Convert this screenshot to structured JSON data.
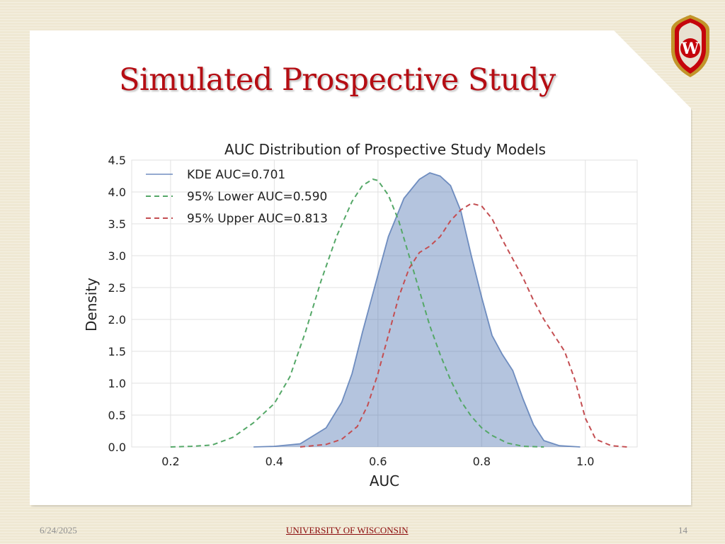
{
  "slide": {
    "title": "Simulated Prospective Study",
    "footer_date": "6/24/2025",
    "footer_org": "UNIVERSITY OF WISCONSIN",
    "page_number": "14",
    "logo_letter": "W",
    "colors": {
      "title": "#b50d13",
      "logo_red": "#c5050c"
    }
  },
  "chart_data": {
    "type": "line",
    "title": "AUC Distribution of Prospective Study Models",
    "xlabel": "AUC",
    "ylabel": "Density",
    "xlim": [
      0.125,
      1.1
    ],
    "ylim": [
      0,
      4.5
    ],
    "xticks": [
      "0.2",
      "0.4",
      "0.6",
      "0.8",
      "1.0"
    ],
    "yticks": [
      "0.0",
      "0.5",
      "1.0",
      "1.5",
      "2.0",
      "2.5",
      "3.0",
      "3.5",
      "4.0",
      "4.5"
    ],
    "grid": true,
    "legend_position": "top-left",
    "series": [
      {
        "name": "KDE AUC=0.701",
        "style": "filled",
        "color": "#4c72b0",
        "x": [
          0.36,
          0.4,
          0.45,
          0.5,
          0.53,
          0.55,
          0.57,
          0.6,
          0.62,
          0.65,
          0.68,
          0.7,
          0.72,
          0.74,
          0.76,
          0.78,
          0.8,
          0.82,
          0.84,
          0.86,
          0.88,
          0.9,
          0.92,
          0.95,
          0.99
        ],
        "y": [
          0.0,
          0.01,
          0.05,
          0.3,
          0.7,
          1.15,
          1.8,
          2.7,
          3.3,
          3.9,
          4.2,
          4.3,
          4.25,
          4.1,
          3.7,
          3.0,
          2.35,
          1.75,
          1.45,
          1.2,
          0.75,
          0.35,
          0.1,
          0.02,
          0.0
        ]
      },
      {
        "name": "95% Lower AUC=0.590",
        "style": "dashed",
        "color": "#55a868",
        "x": [
          0.2,
          0.24,
          0.28,
          0.32,
          0.36,
          0.4,
          0.43,
          0.46,
          0.49,
          0.52,
          0.55,
          0.57,
          0.59,
          0.6,
          0.62,
          0.64,
          0.66,
          0.68,
          0.7,
          0.72,
          0.74,
          0.76,
          0.78,
          0.8,
          0.82,
          0.85,
          0.88,
          0.92
        ],
        "y": [
          0.0,
          0.01,
          0.03,
          0.15,
          0.38,
          0.68,
          1.1,
          1.8,
          2.6,
          3.3,
          3.85,
          4.1,
          4.2,
          4.18,
          3.95,
          3.55,
          3.0,
          2.45,
          1.9,
          1.45,
          1.05,
          0.72,
          0.48,
          0.3,
          0.18,
          0.06,
          0.01,
          0.0
        ]
      },
      {
        "name": "95% Upper AUC=0.813",
        "style": "dashed",
        "color": "#c44e52",
        "x": [
          0.45,
          0.5,
          0.53,
          0.56,
          0.58,
          0.6,
          0.62,
          0.64,
          0.66,
          0.68,
          0.7,
          0.72,
          0.74,
          0.76,
          0.78,
          0.8,
          0.82,
          0.84,
          0.86,
          0.88,
          0.9,
          0.92,
          0.94,
          0.96,
          0.98,
          1.0,
          1.02,
          1.05,
          1.08
        ],
        "y": [
          0.0,
          0.04,
          0.12,
          0.32,
          0.65,
          1.15,
          1.75,
          2.35,
          2.8,
          3.05,
          3.15,
          3.3,
          3.55,
          3.72,
          3.82,
          3.78,
          3.58,
          3.25,
          2.95,
          2.65,
          2.3,
          2.0,
          1.75,
          1.5,
          1.05,
          0.45,
          0.12,
          0.02,
          0.0
        ]
      }
    ]
  }
}
